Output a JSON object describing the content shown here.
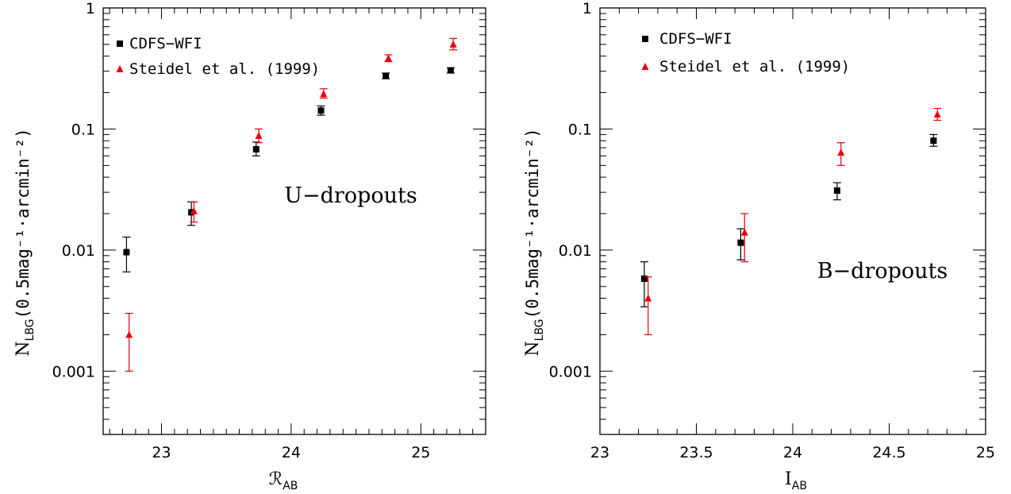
{
  "colors": {
    "cdfs": "#000000",
    "steidel": "#e8000b",
    "axes": "#000000"
  },
  "chart_data": [
    {
      "type": "scatter",
      "yscale": "log",
      "xlim": [
        22.55,
        25.5
      ],
      "ylim": [
        0.0003,
        1
      ],
      "xticks": [
        23,
        24,
        25
      ],
      "xtick_labels": [
        "23",
        "24",
        "25"
      ],
      "x_minor_step": 0.1,
      "yticks": [
        0.001,
        0.01,
        0.1,
        1
      ],
      "ytick_labels": [
        "0.001",
        "0.01",
        "0.1",
        "1"
      ],
      "xlabel": "ℛ",
      "xlabel_sub": "AB",
      "ylabel": "N",
      "ylabel_sub": "LBG",
      "ylabel_units": "(0.5mag⁻¹·arcmin⁻²)",
      "annotation": "U−dropouts",
      "legend_position": "top-left",
      "series": [
        {
          "name": "CDFS−WFI",
          "marker": "square",
          "color": "#000000",
          "x": [
            22.73,
            23.23,
            23.73,
            24.23,
            24.73,
            25.23
          ],
          "y": [
            0.0096,
            0.0205,
            0.068,
            0.142,
            0.275,
            0.305
          ],
          "ylow": [
            0.0066,
            0.016,
            0.06,
            0.13,
            0.26,
            0.29
          ],
          "yhigh": [
            0.0128,
            0.025,
            0.078,
            0.155,
            0.29,
            0.32
          ]
        },
        {
          "name": "Steidel et al. (1999)",
          "marker": "triangle",
          "color": "#e8000b",
          "x": [
            22.75,
            23.25,
            23.75,
            24.25,
            24.75,
            25.25
          ],
          "y": [
            0.002,
            0.021,
            0.088,
            0.195,
            0.385,
            0.5
          ],
          "ylow": [
            0.001,
            0.017,
            0.077,
            0.18,
            0.36,
            0.45
          ],
          "yhigh": [
            0.003,
            0.025,
            0.1,
            0.215,
            0.41,
            0.56
          ]
        }
      ]
    },
    {
      "type": "scatter",
      "yscale": "log",
      "xlim": [
        23,
        25
      ],
      "ylim": [
        0.0003,
        1
      ],
      "xticks": [
        23,
        23.5,
        24,
        24.5,
        25
      ],
      "xtick_labels": [
        "23",
        "23.5",
        "24",
        "24.5",
        "25"
      ],
      "x_minor_step": 0.1,
      "yticks": [
        0.001,
        0.01,
        0.1,
        1
      ],
      "ytick_labels": [
        "0.001",
        "0.01",
        "0.1",
        "1"
      ],
      "xlabel": "I",
      "xlabel_sub": "AB",
      "ylabel": "N",
      "ylabel_sub": "LBG",
      "ylabel_units": "(0.5mag⁻¹·arcmin⁻²)",
      "annotation": "B−dropouts",
      "legend_position": "top-left",
      "series": [
        {
          "name": "CDFS−WFI",
          "marker": "square",
          "color": "#000000",
          "x": [
            23.23,
            23.73,
            24.23,
            24.73
          ],
          "y": [
            0.0058,
            0.0115,
            0.031,
            0.08
          ],
          "ylow": [
            0.0034,
            0.0083,
            0.026,
            0.072
          ],
          "yhigh": [
            0.008,
            0.015,
            0.036,
            0.09
          ]
        },
        {
          "name": "Steidel et al. (1999)",
          "marker": "triangle",
          "color": "#e8000b",
          "x": [
            23.25,
            23.75,
            24.25,
            24.75
          ],
          "y": [
            0.004,
            0.014,
            0.064,
            0.132
          ],
          "ylow": [
            0.002,
            0.008,
            0.05,
            0.118
          ],
          "yhigh": [
            0.006,
            0.02,
            0.077,
            0.148
          ]
        }
      ]
    }
  ]
}
